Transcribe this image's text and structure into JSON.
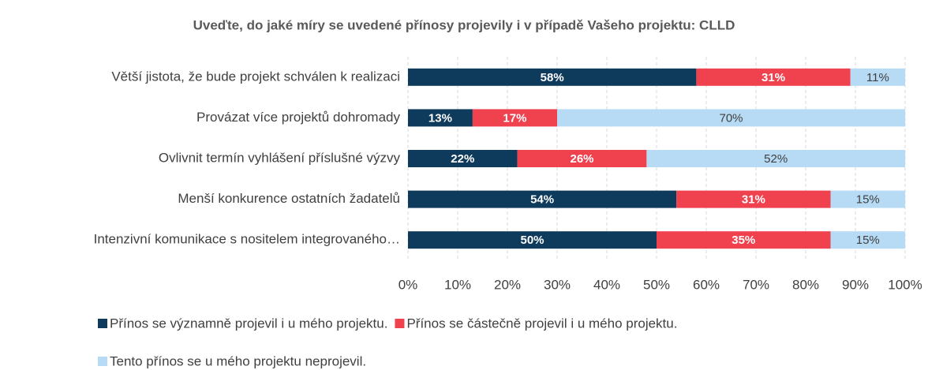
{
  "chart_data": {
    "type": "bar",
    "orientation": "horizontal",
    "stacked": true,
    "title": "Uveďte, do jaké míry se uvedené přínosy projevily i v případě Vašeho projektu: CLLD",
    "categories": [
      "Větší jistota, že bude projekt schválen k realizaci",
      "Provázat více projektů dohromady",
      "Ovlivnit termín vyhlášení příslušné výzvy",
      "Menší konkurence ostatních žadatelů",
      "Intenzivní komunikace s nositelem integrovaného…"
    ],
    "series": [
      {
        "name": "Přínos se významně projevil i u mého projektu.",
        "color": "#0e3a5c",
        "values": [
          58,
          13,
          22,
          54,
          50
        ],
        "value_labels": [
          "58%",
          "13%",
          "22%",
          "54%",
          "50%"
        ]
      },
      {
        "name": "Přínos se částečně projevil i u mého projektu.",
        "color": "#f0414f",
        "values": [
          31,
          17,
          26,
          31,
          35
        ],
        "value_labels": [
          "31%",
          "17%",
          "26%",
          "31%",
          "35%"
        ]
      },
      {
        "name": "Tento přínos se u mého projektu neprojevil.",
        "color": "#b7dbf5",
        "values": [
          11,
          70,
          52,
          15,
          15
        ],
        "value_labels": [
          "11%",
          "70%",
          "52%",
          "15%",
          "15%"
        ]
      }
    ],
    "xlim": [
      0,
      100
    ],
    "xticks": [
      {
        "value": 0,
        "label": "0%"
      },
      {
        "value": 10,
        "label": "10%"
      },
      {
        "value": 20,
        "label": "20%"
      },
      {
        "value": 30,
        "label": "30%"
      },
      {
        "value": 40,
        "label": "40%"
      },
      {
        "value": 50,
        "label": "50%"
      },
      {
        "value": 60,
        "label": "60%"
      },
      {
        "value": 70,
        "label": "70%"
      },
      {
        "value": 80,
        "label": "80%"
      },
      {
        "value": 90,
        "label": "90%"
      },
      {
        "value": 100,
        "label": "100%"
      }
    ],
    "grid": true,
    "legend": "bottom"
  }
}
